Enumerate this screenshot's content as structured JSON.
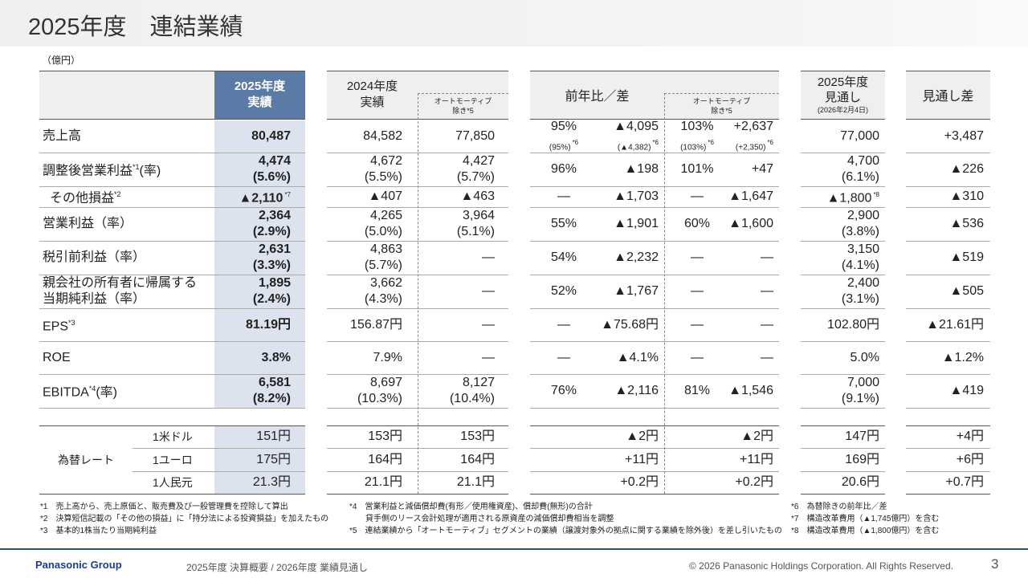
{
  "header": {
    "title": "2025年度　連結業績"
  },
  "unit": "（億円）",
  "table": {
    "headers": {
      "actual": [
        "2025年度",
        "実績"
      ],
      "prior": [
        "2024年度",
        "実績"
      ],
      "prior_ex": [
        "オートモーティブ",
        "除き*5"
      ],
      "yoy": "前年比／差",
      "yoy_ex": [
        "オートモーティブ",
        "除き*5"
      ],
      "forecast": [
        "2025年度",
        "見通し",
        "(2026年2月4日)"
      ],
      "forecast_diff": "見通し差"
    },
    "rows": [
      {
        "label": "売上高",
        "cells": [
          "80,487",
          "84,582",
          "77,850",
          {
            "l": [
              "95%",
              "(95%)"
            ],
            "n": "*6"
          },
          {
            "l": [
              "▲4,095",
              "(▲4,382)"
            ],
            "n": "*6"
          },
          {
            "l": [
              "103%",
              "(103%)"
            ],
            "n": "*6"
          },
          {
            "l": [
              "+2,637",
              "(+2,350)"
            ],
            "n": "*6"
          },
          "77,000",
          "+3,487"
        ]
      },
      {
        "label": {
          "l": "調整後営業利益",
          "n": "*1",
          "s": "(率)"
        },
        "cells": [
          [
            "4,474",
            "(5.6%)"
          ],
          [
            "4,672",
            "(5.5%)"
          ],
          [
            "4,427",
            "(5.7%)"
          ],
          "96%",
          "▲198",
          "101%",
          "+47",
          [
            "4,700",
            "(6.1%)"
          ],
          "▲226"
        ]
      },
      {
        "label": {
          "l": "その他損益",
          "n": "*2"
        },
        "cells": [
          {
            "l": [
              "▲2,110"
            ],
            "n": "*7"
          },
          "▲407",
          "▲463",
          "—",
          "▲1,703",
          "—",
          "▲1,647",
          {
            "l": [
              "▲1,800"
            ],
            "n": "*8"
          },
          "▲310"
        ]
      },
      {
        "label": "営業利益（率）",
        "cells": [
          [
            "2,364",
            "(2.9%)"
          ],
          [
            "4,265",
            "(5.0%)"
          ],
          [
            "3,964",
            "(5.1%)"
          ],
          "55%",
          "▲1,901",
          "60%",
          "▲1,600",
          [
            "2,900",
            "(3.8%)"
          ],
          "▲536"
        ]
      },
      {
        "label": "税引前利益（率）",
        "cells": [
          [
            "2,631",
            "(3.3%)"
          ],
          [
            "4,863",
            "(5.7%)"
          ],
          "—",
          "54%",
          "▲2,232",
          "—",
          "—",
          [
            "3,150",
            "(4.1%)"
          ],
          "▲519"
        ]
      },
      {
        "label": [
          "親会社の所有者に帰属する",
          "当期純利益（率）"
        ],
        "cells": [
          [
            "1,895",
            "(2.4%)"
          ],
          [
            "3,662",
            "(4.3%)"
          ],
          "—",
          "52%",
          "▲1,767",
          "—",
          "—",
          [
            "2,400",
            "(3.1%)"
          ],
          "▲505"
        ]
      },
      {
        "label": {
          "l": "EPS",
          "n": "*3"
        },
        "cells": [
          "81.19円",
          "156.87円",
          "—",
          "—",
          "▲75.68円",
          "—",
          "—",
          "102.80円",
          "▲21.61円"
        ]
      },
      {
        "label": "ROE",
        "cells": [
          "3.8%",
          "7.9%",
          "—",
          "—",
          "▲4.1%",
          "—",
          "—",
          "5.0%",
          "▲1.2%"
        ]
      },
      {
        "label": {
          "l": "EBITDA",
          "n": "*4",
          "s": "(率)"
        },
        "cells": [
          [
            "6,581",
            "(8.2%)"
          ],
          [
            "8,697",
            "(10.3%)"
          ],
          [
            "8,127",
            "(10.4%)"
          ],
          "76%",
          "▲2,116",
          "81%",
          "▲1,546",
          [
            "7,000",
            "(9.1%)"
          ],
          "▲419"
        ]
      }
    ],
    "fx": {
      "label": "為替レート",
      "rows": [
        {
          "label": "1米ドル",
          "cells": [
            "151円",
            "153円",
            "153円",
            "▲2円",
            "▲2円",
            "147円",
            "+4円"
          ]
        },
        {
          "label": "1ユーロ",
          "cells": [
            "175円",
            "164円",
            "164円",
            "+11円",
            "+11円",
            "169円",
            "+6円"
          ]
        },
        {
          "label": "1人民元",
          "cells": [
            "21.3円",
            "21.1円",
            "21.1円",
            "+0.2円",
            "+0.2円",
            "20.6円",
            "+0.7円"
          ]
        }
      ]
    }
  },
  "footnotes": [
    [
      "*1　売上高から、売上原価と、販売費及び一般管理費を控除して算出",
      "*2　決算短信記載の「その他の損益」に「持分法による投資損益」を加えたもの",
      "*3　基本的1株当たり当期純利益"
    ],
    [
      "*4　営業利益と減価償却費(有形／使用権資産)、償却費(無形)の合計",
      "　　貸手側のリース会計処理が適用される原資産の減価償却費相当を調整",
      "*5　連結業績から「オートモーティブ」セグメントの業績（譲渡対象外の拠点に関する業績を除外後）を差し引いたもの"
    ],
    [
      "*6　為替除きの前年比／差",
      "*7　構造改革費用（▲1,745億円）を含む",
      "*8　構造改革費用（▲1,800億円）を含む"
    ]
  ],
  "footer": {
    "brand": "Panasonic Group",
    "subtitle": "2025年度 決算概要 / 2026年度 業績見通し",
    "copyright": "© 2026 Panasonic Holdings Corporation. All Rights Reserved.",
    "page": "3"
  }
}
